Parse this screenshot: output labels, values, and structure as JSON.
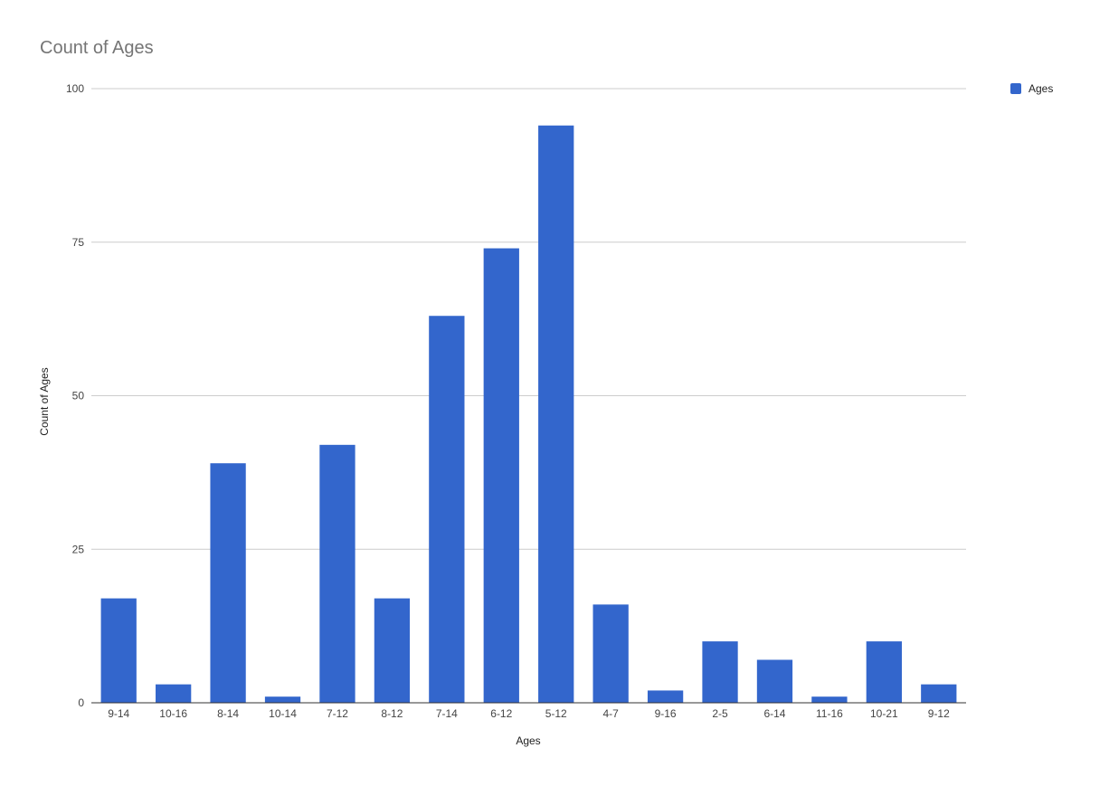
{
  "chart_data": {
    "type": "bar",
    "title": "Count of Ages",
    "xlabel": "Ages",
    "ylabel": "Count of Ages",
    "categories": [
      "9-14",
      "10-16",
      "8-14",
      "10-14",
      "7-12",
      "8-12",
      "7-14",
      "6-12",
      "5-12",
      "4-7",
      "9-16",
      "2-5",
      "6-14",
      "11-16",
      "10-21",
      "9-12"
    ],
    "series": [
      {
        "name": "Ages",
        "values": [
          17,
          3,
          39,
          1,
          42,
          17,
          63,
          74,
          94,
          16,
          2,
          10,
          7,
          1,
          10,
          3
        ],
        "color": "#3366cc"
      }
    ],
    "ylim": [
      0,
      100
    ],
    "yticks": [
      0,
      25,
      50,
      75,
      100
    ],
    "grid": true,
    "legend_position": "top-right"
  }
}
